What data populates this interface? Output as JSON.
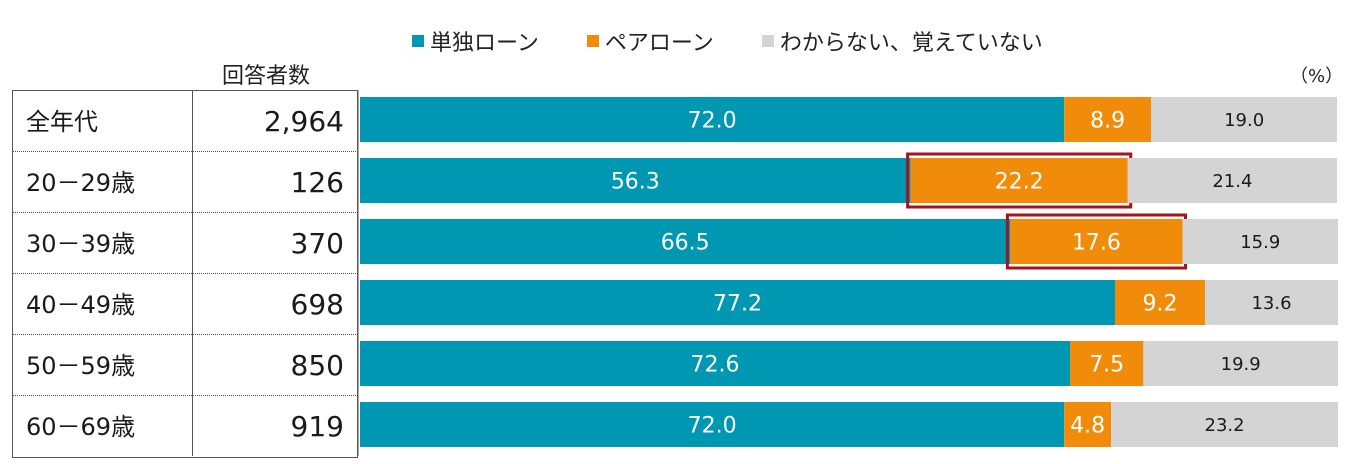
{
  "legend": [
    {
      "label": "単独ローン",
      "color": "#0097b2"
    },
    {
      "label": "ペアローン",
      "color": "#f08c0a"
    },
    {
      "label": "わからない、覚えていない",
      "color": "#d4d4d4"
    }
  ],
  "count_header": "回答者数",
  "unit": "（%）",
  "chart_data": {
    "type": "bar",
    "orientation": "horizontal",
    "stacked": true,
    "categories": [
      "全年代",
      "20－29歳",
      "30－39歳",
      "40－49歳",
      "50－59歳",
      "60－69歳"
    ],
    "respondents": [
      "2,964",
      "126",
      "370",
      "698",
      "850",
      "919"
    ],
    "series": [
      {
        "name": "単独ローン",
        "values": [
          72.0,
          56.3,
          66.5,
          77.2,
          72.6,
          72.0
        ],
        "labels": [
          "72.0",
          "56.3",
          "66.5",
          "77.2",
          "72.6",
          "72.0"
        ],
        "color": "#0097b2"
      },
      {
        "name": "ペアローン",
        "values": [
          8.9,
          22.2,
          17.6,
          9.2,
          7.5,
          4.8
        ],
        "labels": [
          "8.9",
          "22.2",
          "17.6",
          "9.2",
          "7.5",
          "4.8"
        ],
        "color": "#f08c0a"
      },
      {
        "name": "わからない、覚えていない",
        "values": [
          19.0,
          21.4,
          15.9,
          13.6,
          19.9,
          23.2
        ],
        "labels": [
          "19.0",
          "21.4",
          "15.9",
          "13.6",
          "19.9",
          "23.2"
        ],
        "color": "#d4d4d4"
      }
    ],
    "highlighted": [
      {
        "category": "20－29歳",
        "series": "ペアローン"
      },
      {
        "category": "30－39歳",
        "series": "ペアローン"
      }
    ],
    "highlight_color": "#a3141e",
    "xlim": [
      0,
      100
    ],
    "legend_position": "top"
  }
}
